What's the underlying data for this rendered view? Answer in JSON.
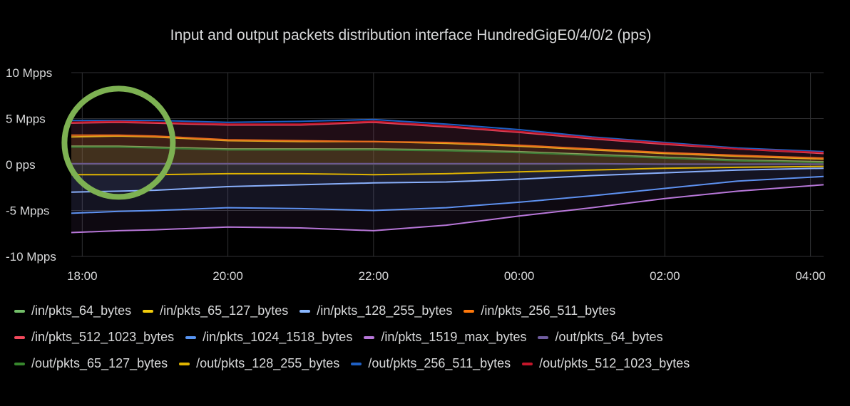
{
  "chart_data": {
    "type": "line",
    "title": "Input and output packets distribution interface HundredGigE0/4/0/2 (pps)",
    "xlabel": "",
    "ylabel": "",
    "x_ticks": [
      "18:00",
      "20:00",
      "22:00",
      "00:00",
      "02:00",
      "04:00"
    ],
    "x_tick_hours": [
      18,
      20,
      22,
      24,
      26,
      28
    ],
    "xlim": [
      17.85,
      28.18
    ],
    "y_ticks": [
      10,
      5,
      0,
      -5,
      -10
    ],
    "y_tick_labels": [
      "10 Mpps",
      "5 Mpps",
      "0 pps",
      "-5 Mpps",
      "-10 Mpps"
    ],
    "ylim": [
      -10,
      10
    ],
    "y_unit": "Mpps",
    "grid": true,
    "legend_position": "bottom",
    "x": [
      17.85,
      18.5,
      19.0,
      20.0,
      21.0,
      22.0,
      23.0,
      24.0,
      25.0,
      26.0,
      27.0,
      28.18
    ],
    "series": [
      {
        "name": "/in/pkts_64_bytes",
        "color": "#73bf69",
        "values": [
          2.0,
          2.0,
          1.9,
          1.7,
          1.7,
          1.7,
          1.6,
          1.4,
          1.1,
          0.8,
          0.5,
          0.3
        ]
      },
      {
        "name": "/in/pkts_65_127_bytes",
        "color": "#f2cc0c",
        "values": [
          3.0,
          3.1,
          3.0,
          2.6,
          2.5,
          2.5,
          2.3,
          2.0,
          1.6,
          1.2,
          0.9,
          0.6
        ]
      },
      {
        "name": "/in/pkts_128_255_bytes",
        "color": "#8ab8ff",
        "values": [
          -3.0,
          -2.9,
          -2.8,
          -2.4,
          -2.2,
          -2.0,
          -1.9,
          -1.6,
          -1.2,
          -0.9,
          -0.6,
          -0.4
        ]
      },
      {
        "name": "/in/pkts_256_511_bytes",
        "color": "#ff780a",
        "values": [
          3.2,
          3.2,
          3.1,
          2.7,
          2.6,
          2.5,
          2.4,
          2.1,
          1.7,
          1.3,
          1.0,
          0.7
        ]
      },
      {
        "name": "/in/pkts_512_1023_bytes",
        "color": "#f2495c",
        "values": [
          4.5,
          4.6,
          4.5,
          4.3,
          4.3,
          4.6,
          4.1,
          3.5,
          2.8,
          2.2,
          1.7,
          1.2
        ]
      },
      {
        "name": "/in/pkts_1024_1518_bytes",
        "color": "#5794f2",
        "values": [
          -5.3,
          -5.1,
          -5.0,
          -4.7,
          -4.8,
          -5.0,
          -4.7,
          -4.1,
          -3.4,
          -2.6,
          -1.8,
          -1.3
        ]
      },
      {
        "name": "/in/pkts_1519_max_bytes",
        "color": "#b877d9",
        "values": [
          -7.4,
          -7.2,
          -7.1,
          -6.8,
          -6.9,
          -7.2,
          -6.6,
          -5.6,
          -4.7,
          -3.7,
          -2.9,
          -2.2
        ]
      },
      {
        "name": "/out/pkts_64_bytes",
        "color": "#705da0",
        "values": [
          0.1,
          0.1,
          0.1,
          0.1,
          0.1,
          0.1,
          0.1,
          0.1,
          0.1,
          0.05,
          0.05,
          0.05
        ]
      },
      {
        "name": "/out/pkts_65_127_bytes",
        "color": "#37872d",
        "values": [
          1.9,
          1.9,
          1.8,
          1.6,
          1.6,
          1.6,
          1.5,
          1.3,
          1.0,
          0.7,
          0.4,
          0.2
        ]
      },
      {
        "name": "/out/pkts_128_255_bytes",
        "color": "#e0b400",
        "values": [
          -1.1,
          -1.1,
          -1.1,
          -1.0,
          -1.0,
          -1.1,
          -1.0,
          -0.8,
          -0.6,
          -0.4,
          -0.3,
          -0.2
        ]
      },
      {
        "name": "/out/pkts_256_511_bytes",
        "color": "#1f60c4",
        "values": [
          4.8,
          4.8,
          4.8,
          4.6,
          4.7,
          4.9,
          4.4,
          3.8,
          3.0,
          2.4,
          1.8,
          1.4
        ]
      },
      {
        "name": "/out/pkts_512_1023_bytes",
        "color": "#c4162a",
        "values": [
          4.6,
          4.7,
          4.6,
          4.4,
          4.4,
          4.7,
          4.2,
          3.6,
          2.9,
          2.3,
          1.7,
          1.3
        ]
      }
    ],
    "annotation": {
      "type": "circle",
      "color": "#7db152",
      "x": 18.5,
      "y": 3.3
    }
  },
  "legend_rows": [
    [
      0,
      1,
      2,
      3
    ],
    [
      4,
      5,
      6,
      7
    ],
    [
      8,
      9,
      10,
      11
    ]
  ]
}
